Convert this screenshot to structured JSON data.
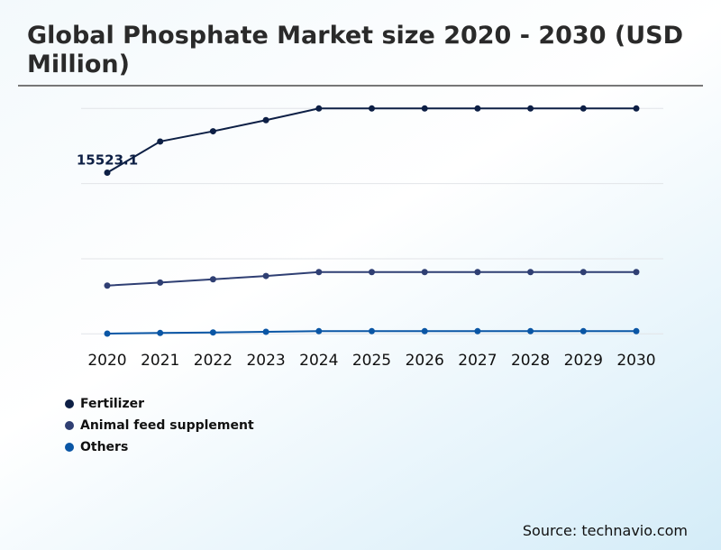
{
  "title": "Global Phosphate Market size 2020 - 2030 (USD Million)",
  "source": "Source: technavio.com",
  "chart_data": {
    "type": "line",
    "title": "Global Phosphate Market size 2020 - 2030 (USD Million)",
    "x": [
      "2020",
      "2021",
      "2022",
      "2023",
      "2024",
      "2025",
      "2026",
      "2027",
      "2028",
      "2029",
      "2030"
    ],
    "series": [
      {
        "name": "Fertilizer",
        "color": "#0d1f45",
        "values": [
          15523.1,
          18524,
          19512,
          20579,
          21706,
          21706,
          21706,
          21706,
          21706,
          21706,
          21706
        ]
      },
      {
        "name": "Animal feed supplement",
        "color": "#2f3f73",
        "values": [
          4648,
          4943,
          5255,
          5576,
          5949,
          5949,
          5949,
          5949,
          5949,
          5949,
          5949
        ]
      },
      {
        "name": "Others",
        "color": "#0a56a5",
        "values": [
          26,
          87,
          139,
          199,
          260,
          260,
          260,
          260,
          260,
          260,
          260
        ]
      }
    ],
    "data_labels": [
      {
        "series": "Fertilizer",
        "x": "2020",
        "text": "15523.1"
      }
    ],
    "ylim": [
      0,
      21706
    ],
    "grid": true,
    "legend_position": "bottom-left",
    "xlabel": "",
    "ylabel": ""
  }
}
